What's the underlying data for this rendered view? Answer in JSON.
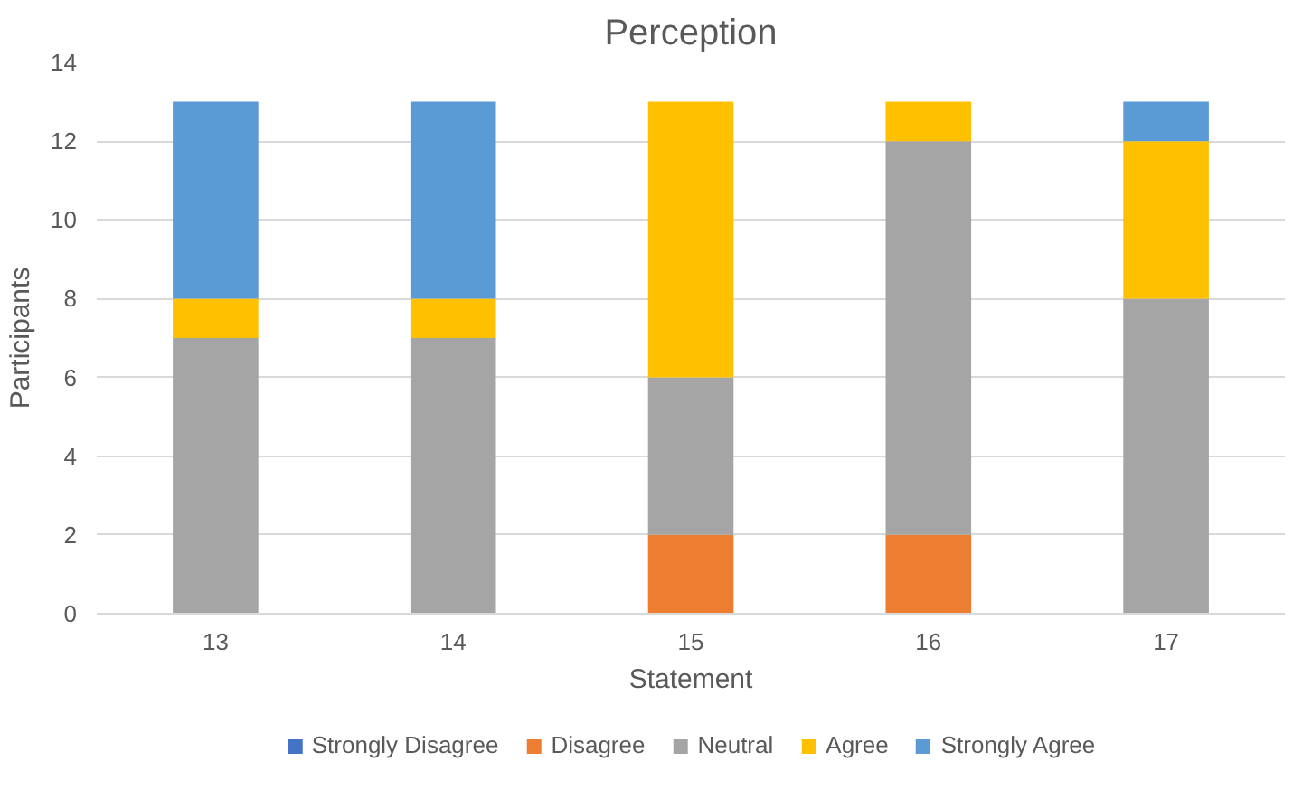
{
  "chart_data": {
    "type": "bar",
    "title": "Perception",
    "xlabel": "Statement",
    "ylabel": "Participants",
    "categories": [
      "13",
      "14",
      "15",
      "16",
      "17"
    ],
    "stacked": true,
    "series": [
      {
        "name": "Strongly Disagree",
        "color": "#4472c4",
        "values": [
          0,
          0,
          0,
          0,
          0
        ]
      },
      {
        "name": "Disagree",
        "color": "#ed7d31",
        "values": [
          0,
          0,
          2,
          2,
          0
        ]
      },
      {
        "name": "Neutral",
        "color": "#a5a5a5",
        "values": [
          7,
          7,
          4,
          10,
          8
        ]
      },
      {
        "name": "Agree",
        "color": "#ffc000",
        "values": [
          1,
          1,
          7,
          1,
          4
        ]
      },
      {
        "name": "Strongly Agree",
        "color": "#5b9bd5",
        "values": [
          5,
          5,
          0,
          0,
          1
        ]
      }
    ],
    "ylim": [
      0,
      14
    ],
    "yticks": [
      0,
      2,
      4,
      6,
      8,
      10,
      12,
      14
    ],
    "grid": "y",
    "legend": "bottom"
  }
}
